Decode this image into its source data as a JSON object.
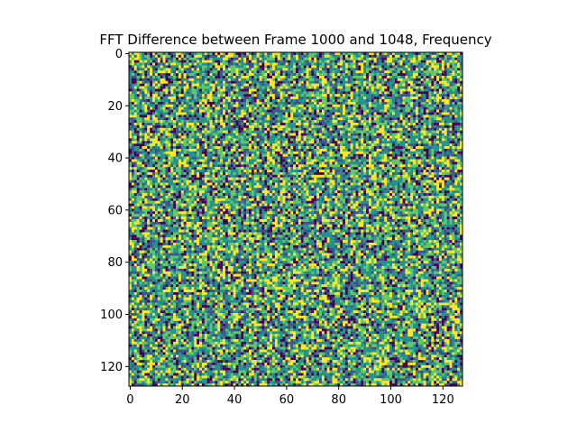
{
  "chart_data": {
    "type": "heatmap",
    "title": "FFT Difference between Frame 1000 and 1048, Frequency",
    "xlabel": "",
    "ylabel": "",
    "rows": 128,
    "cols": 128,
    "xlim": [
      0,
      128
    ],
    "ylim": [
      128,
      0
    ],
    "x_ticks": [
      0,
      20,
      40,
      60,
      80,
      100,
      120
    ],
    "y_ticks": [
      0,
      20,
      40,
      60,
      80,
      100,
      120
    ],
    "colormap": "viridis",
    "palette": [
      "#440154",
      "#3b528b",
      "#21918c",
      "#5ec962",
      "#fde725"
    ],
    "cell_levels_note_free": true,
    "value_distribution": "uniform random noise across full colormap range",
    "grid": false,
    "legend": "none"
  }
}
